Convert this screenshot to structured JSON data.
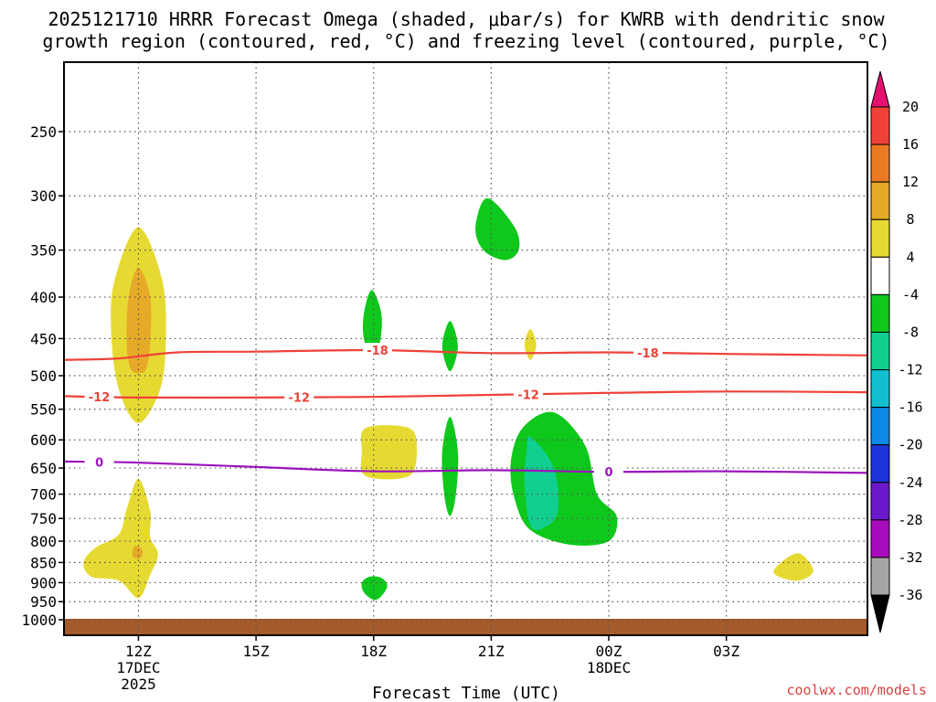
{
  "chart_data": {
    "type": "contour",
    "title_line1": "2025121710 HRRR Forecast Omega (shaded, μbar/s) for KWRB with dendritic snow",
    "title_line2": "growth region (contoured, red, °C) and freezing level (contoured, purple, °C)",
    "xlabel": "Forecast Time (UTC)",
    "credit": "coolwx.com/models",
    "x_range_hours": [
      -1.9,
      18.6
    ],
    "x_ticks": [
      {
        "hour": 0,
        "label": "12Z",
        "sub1": "17DEC",
        "sub2": "2025"
      },
      {
        "hour": 3,
        "label": "15Z"
      },
      {
        "hour": 6,
        "label": "18Z"
      },
      {
        "hour": 9,
        "label": "21Z"
      },
      {
        "hour": 12,
        "label": "00Z",
        "sub1": "18DEC"
      },
      {
        "hour": 15,
        "label": "03Z"
      }
    ],
    "y_axis": "pressure (hPa)",
    "y_ticks": [
      250,
      300,
      350,
      400,
      450,
      500,
      550,
      600,
      650,
      700,
      750,
      800,
      850,
      900,
      950,
      1000
    ],
    "colorbar": {
      "levels": [
        "20",
        "16",
        "12",
        "8",
        "4",
        "-4",
        "-8",
        "-12",
        "-16",
        "-20",
        "-24",
        "-28",
        "-32",
        "-36"
      ],
      "colors": [
        "#e3106f",
        "#ef4138",
        "#eb7a25",
        "#e6a928",
        "#e6da32",
        "#ffffff",
        "#0ec81c",
        "#11cf90",
        "#12bfd1",
        "#0c88e6",
        "#1e34da",
        "#6a18c9",
        "#a70cbc",
        "#a5a5a5",
        "#000000"
      ]
    },
    "isotherms": [
      {
        "label": "-18",
        "color": "#ef4138",
        "labels_at_hours": [
          6.1,
          13.0
        ],
        "points": [
          [
            -1.9,
            478
          ],
          [
            -0.5,
            476
          ],
          [
            1,
            468
          ],
          [
            3,
            467
          ],
          [
            6,
            465
          ],
          [
            9,
            469
          ],
          [
            12,
            468
          ],
          [
            15,
            470
          ],
          [
            18.6,
            472
          ]
        ]
      },
      {
        "label": "-12",
        "color": "#ef4138",
        "labels_at_hours": [
          -1.0,
          4.1,
          9.95
        ],
        "points": [
          [
            -1.9,
            530
          ],
          [
            0,
            532
          ],
          [
            3,
            532
          ],
          [
            6,
            531
          ],
          [
            9,
            528
          ],
          [
            12,
            525
          ],
          [
            15,
            523
          ],
          [
            18.6,
            524
          ]
        ]
      },
      {
        "label": "0",
        "color": "#9b13bd",
        "labels_at_hours": [
          -1.0,
          12.0
        ],
        "points": [
          [
            -1.9,
            638
          ],
          [
            0,
            640
          ],
          [
            3,
            648
          ],
          [
            6,
            656
          ],
          [
            9,
            654
          ],
          [
            12,
            657
          ],
          [
            15,
            656
          ],
          [
            18.6,
            659
          ]
        ]
      }
    ],
    "omega_regions": [
      {
        "level": "4 to 8",
        "color": "#e6da32",
        "points": [
          [
            0,
            328
          ],
          [
            0.6,
            380
          ],
          [
            0.7,
            450
          ],
          [
            0.55,
            520
          ],
          [
            0,
            572
          ],
          [
            -0.5,
            520
          ],
          [
            -0.7,
            440
          ],
          [
            -0.6,
            380
          ]
        ]
      },
      {
        "level": "8 to 12",
        "color": "#e6a928",
        "points": [
          [
            0,
            368
          ],
          [
            0.3,
            400
          ],
          [
            0.3,
            455
          ],
          [
            0.2,
            490
          ],
          [
            0,
            496
          ],
          [
            -0.2,
            490
          ],
          [
            -0.3,
            455
          ],
          [
            -0.25,
            400
          ]
        ]
      },
      {
        "level": "4 to 8",
        "color": "#e6da32",
        "points": [
          [
            0,
            670
          ],
          [
            0.3,
            735
          ],
          [
            0.3,
            790
          ],
          [
            0.5,
            830
          ],
          [
            0.3,
            880
          ],
          [
            0,
            940
          ],
          [
            -0.5,
            895
          ],
          [
            -1.2,
            885
          ],
          [
            -1.4,
            850
          ],
          [
            -1.1,
            815
          ],
          [
            -0.5,
            785
          ],
          [
            -0.3,
            730
          ]
        ]
      },
      {
        "level": "8 to 12",
        "color": "#e6a928",
        "points": [
          [
            -0.1,
            812
          ],
          [
            0.1,
            820
          ],
          [
            0.05,
            840
          ],
          [
            -0.15,
            835
          ]
        ]
      },
      {
        "level": "4 to 8",
        "color": "#e6da32",
        "points": [
          [
            5.8,
            580
          ],
          [
            6.9,
            580
          ],
          [
            7.1,
            615
          ],
          [
            6.9,
            665
          ],
          [
            5.8,
            665
          ],
          [
            5.7,
            620
          ]
        ]
      },
      {
        "level": "4 to 8",
        "color": "#e6da32",
        "points": [
          [
            10,
            438
          ],
          [
            10.15,
            458
          ],
          [
            10,
            478
          ],
          [
            9.85,
            458
          ]
        ]
      },
      {
        "level": "4 to 8",
        "color": "#e6da32",
        "points": [
          [
            16.8,
            828
          ],
          [
            17.2,
            862
          ],
          [
            17.1,
            885
          ],
          [
            16.7,
            895
          ],
          [
            16.2,
            872
          ]
        ]
      },
      {
        "level": "-4 to -8",
        "color": "#0ec81c",
        "points": [
          [
            8.9,
            302
          ],
          [
            9.6,
            328
          ],
          [
            9.7,
            350
          ],
          [
            9.35,
            360
          ],
          [
            8.8,
            350
          ],
          [
            8.6,
            328
          ]
        ]
      },
      {
        "level": "-4 to -8",
        "color": "#0ec81c",
        "points": [
          [
            5.95,
            392
          ],
          [
            6.2,
            420
          ],
          [
            6.15,
            458
          ],
          [
            5.95,
            472
          ],
          [
            5.75,
            450
          ],
          [
            5.75,
            420
          ]
        ]
      },
      {
        "level": "-4 to -8",
        "color": "#0ec81c",
        "points": [
          [
            7.95,
            428
          ],
          [
            8.15,
            460
          ],
          [
            7.95,
            494
          ],
          [
            7.75,
            460
          ]
        ]
      },
      {
        "level": "-4 to -8",
        "color": "#0ec81c",
        "points": [
          [
            7.95,
            562
          ],
          [
            8.15,
            620
          ],
          [
            8.1,
            700
          ],
          [
            7.95,
            745
          ],
          [
            7.8,
            700
          ],
          [
            7.75,
            620
          ]
        ]
      },
      {
        "level": "-4 to -8",
        "color": "#0ec81c",
        "points": [
          [
            6.2,
            888
          ],
          [
            6.35,
            908
          ],
          [
            6.2,
            935
          ],
          [
            6,
            945
          ],
          [
            5.75,
            925
          ],
          [
            5.7,
            900
          ],
          [
            5.9,
            885
          ]
        ]
      },
      {
        "level": "-4 to -8",
        "color": "#0ec81c",
        "points": [
          [
            10.6,
            555
          ],
          [
            11.4,
            610
          ],
          [
            11.7,
            700
          ],
          [
            12.2,
            745
          ],
          [
            12.0,
            800
          ],
          [
            11.0,
            808
          ],
          [
            10.0,
            775
          ],
          [
            9.6,
            710
          ],
          [
            9.5,
            640
          ],
          [
            9.8,
            580
          ]
        ]
      },
      {
        "level": "-8 to -12",
        "color": "#11cf90",
        "points": [
          [
            10.0,
            595
          ],
          [
            10.6,
            650
          ],
          [
            10.7,
            735
          ],
          [
            10.35,
            770
          ],
          [
            10.0,
            765
          ],
          [
            9.85,
            680
          ],
          [
            9.9,
            620
          ]
        ]
      }
    ]
  }
}
